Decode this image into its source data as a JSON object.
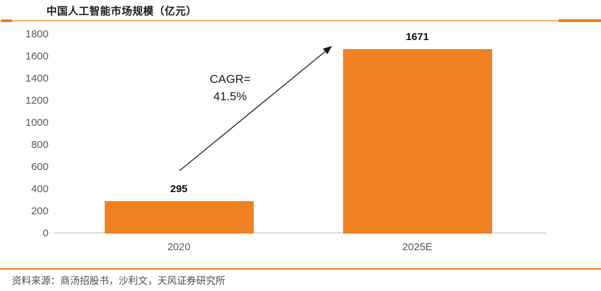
{
  "title": "中国人工智能市场规模（亿元）",
  "source": "资料来源：商汤招股书，沙利文，天风证券研究所",
  "annotation": {
    "line1": "CAGR=",
    "line2": "41.5%"
  },
  "colors": {
    "bar": "#F08223",
    "rule_dark": "#E97D23",
    "rule_light": "#F6AC63",
    "axis_text": "#595959",
    "baseline": "#DBDBDB",
    "label_text": "#0D0D0D"
  },
  "chart_data": {
    "type": "bar",
    "title": "中国人工智能市场规模（亿元）",
    "categories": [
      "2020",
      "2025E"
    ],
    "values": [
      295,
      1671
    ],
    "data_labels": [
      "295",
      "1671"
    ],
    "ylim": [
      0,
      1800
    ],
    "yticks": [
      0,
      200,
      400,
      600,
      800,
      1000,
      1200,
      1400,
      1600,
      1800
    ],
    "grid": false,
    "legend": false,
    "annotation": "CAGR=41.5%",
    "annotation_arrow": "from top of 2020 bar area to top of 2025E bar"
  }
}
